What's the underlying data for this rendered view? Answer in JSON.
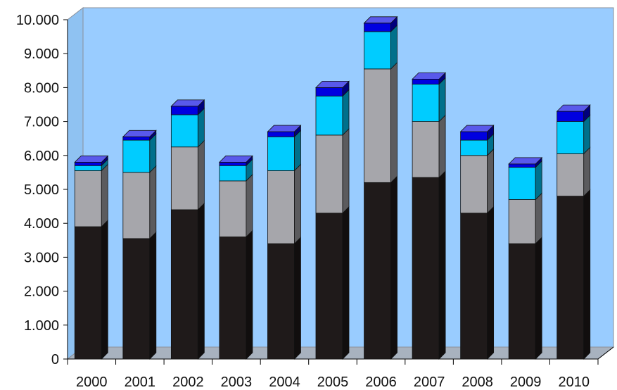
{
  "chart_data": {
    "type": "bar",
    "stacked": true,
    "three_d": true,
    "categories": [
      "2000",
      "2001",
      "2002",
      "2003",
      "2004",
      "2005",
      "2006",
      "2007",
      "2008",
      "2009",
      "2010"
    ],
    "series": [
      {
        "values": [
          3900,
          3550,
          4400,
          3600,
          3400,
          4300,
          5200,
          5350,
          4300,
          3400,
          4800
        ],
        "color": "#1f1a1a"
      },
      {
        "values": [
          1650,
          1950,
          1850,
          1650,
          2150,
          2300,
          3350,
          1650,
          1700,
          1300,
          1250
        ],
        "color": "#a6a6ab"
      },
      {
        "values": [
          150,
          950,
          950,
          450,
          1000,
          1150,
          1100,
          1100,
          450,
          950,
          950
        ],
        "color": "#00ccff"
      },
      {
        "values": [
          100,
          100,
          250,
          100,
          150,
          250,
          250,
          150,
          250,
          100,
          300
        ],
        "color": "#0000e0"
      }
    ],
    "ylim": [
      0,
      10000
    ],
    "yticks": [
      "0",
      "1.000",
      "2.000",
      "3.000",
      "4.000",
      "5.000",
      "6.000",
      "7.000",
      "8.000",
      "9.000",
      "10.000"
    ],
    "xlabel": "",
    "ylabel": "",
    "title": "",
    "grid": false,
    "legend": "none",
    "background_color": "#99ccff"
  }
}
